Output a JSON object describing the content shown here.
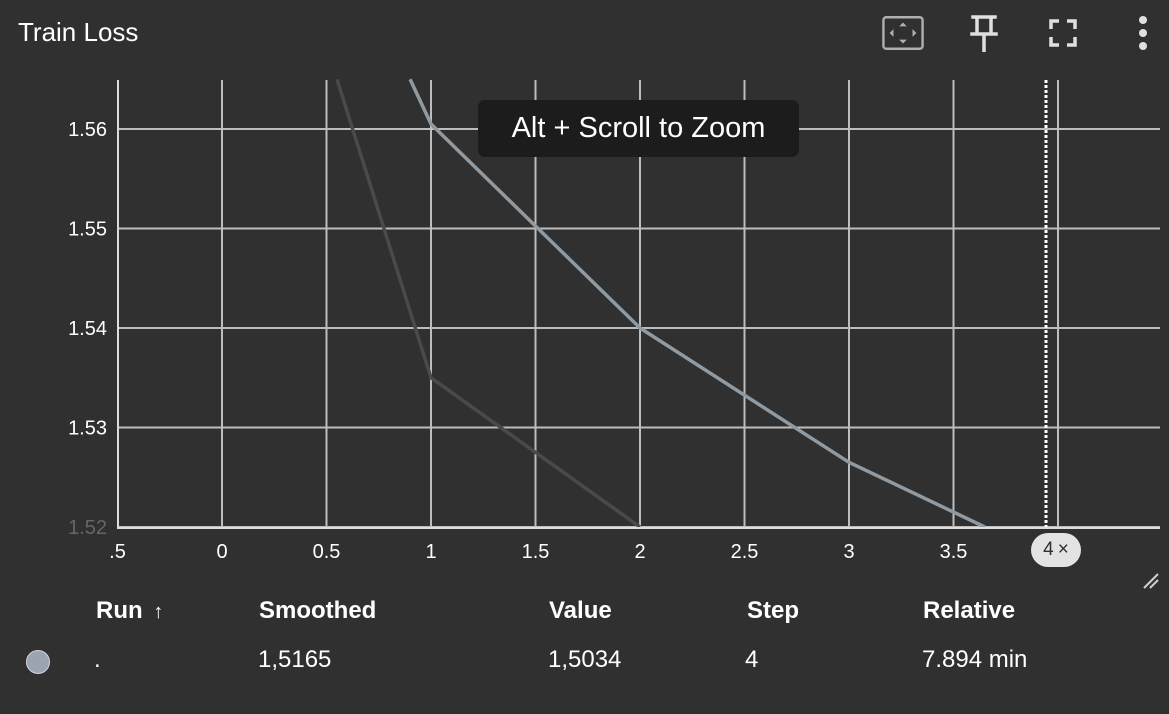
{
  "card": {
    "title": "Train Loss"
  },
  "toolbar": {
    "icons": [
      "fit-domain-icon",
      "pin-icon",
      "fullscreen-icon",
      "more-vert-icon"
    ]
  },
  "tooltip": {
    "text": "Alt + Scroll to Zoom"
  },
  "step_chip": {
    "label": "4",
    "close": "×"
  },
  "colors": {
    "background": "#303030",
    "grid": "#bdbdbd",
    "raw_line": "#4a4a4a",
    "smoothed_line": "#8f9aa3",
    "run_dot": "#9aa5b1"
  },
  "chart_data": {
    "type": "line",
    "title": "Train Loss",
    "xlabel": "",
    "ylabel": "",
    "xlim": [
      -0.5,
      4.0
    ],
    "ylim": [
      1.52,
      1.565
    ],
    "x_ticks": [
      {
        "v": -0.5,
        "label": ".5"
      },
      {
        "v": 0,
        "label": "0"
      },
      {
        "v": 0.5,
        "label": "0.5"
      },
      {
        "v": 1,
        "label": "1"
      },
      {
        "v": 1.5,
        "label": "1.5"
      },
      {
        "v": 2,
        "label": "2"
      },
      {
        "v": 2.5,
        "label": "2.5"
      },
      {
        "v": 3,
        "label": "3"
      },
      {
        "v": 3.5,
        "label": "3.5"
      },
      {
        "v": 4,
        "label": "4"
      }
    ],
    "y_ticks": [
      {
        "v": 1.52,
        "label": "1.52"
      },
      {
        "v": 1.53,
        "label": "1.53"
      },
      {
        "v": 1.54,
        "label": "1.54"
      },
      {
        "v": 1.55,
        "label": "1.55"
      },
      {
        "v": 1.56,
        "label": "1.56"
      }
    ],
    "grid": true,
    "series": [
      {
        "role": "raw",
        "x": [
          0.55,
          1.0,
          2.0
        ],
        "y": [
          1.565,
          1.535,
          1.52
        ]
      },
      {
        "role": "smoothed",
        "x": [
          0.9,
          1.0,
          2.0,
          3.0,
          3.65
        ],
        "y": [
          1.565,
          1.5605,
          1.54,
          1.5265,
          1.52
        ]
      }
    ],
    "step_marker_x": 4
  },
  "table": {
    "headers": {
      "run": "Run",
      "sort_arrow": "↑",
      "smoothed": "Smoothed",
      "value": "Value",
      "step": "Step",
      "relative": "Relative"
    },
    "rows": [
      {
        "run": ".",
        "smoothed": "1,5165",
        "value": "1,5034",
        "step": "4",
        "relative": "7.894 min"
      }
    ]
  }
}
